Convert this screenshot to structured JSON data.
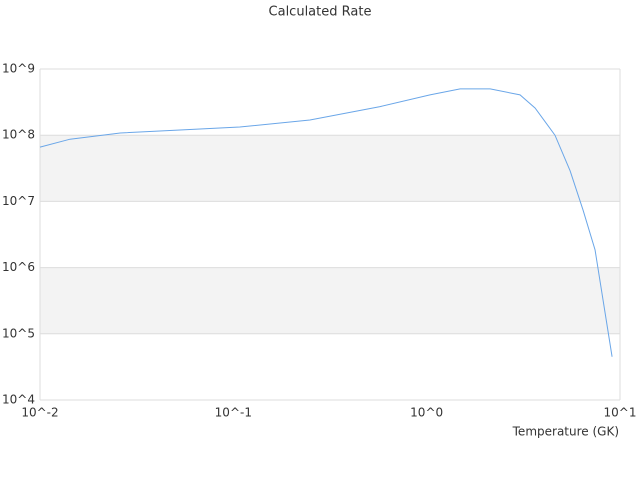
{
  "chart_data": {
    "type": "line",
    "title": "Calculated Rate",
    "x_label": "Temperature (GK)",
    "x": [
      0.01,
      0.0143,
      0.026,
      0.053,
      0.108,
      0.249,
      0.574,
      1.04,
      1.49,
      2.13,
      3.04,
      3.64,
      4.61,
      5.52,
      6.44,
      7.43,
      9.1
    ],
    "series": [
      {
        "name": "Calculated Rate",
        "color": "#6aa6e8",
        "values": [
          66000000,
          87000000,
          108000000,
          120000000,
          133000000,
          170000000,
          270000000,
          407000000,
          500000000,
          500000000,
          407000000,
          257000000,
          100000000,
          29000000,
          7400000,
          1850000,
          45000
        ]
      }
    ],
    "xlim": [
      0.01,
      10
    ],
    "xticks": [
      {
        "value": 0.01,
        "label": "10^-2"
      },
      {
        "value": 0.1,
        "label": "10^-1"
      },
      {
        "value": 1,
        "label": "10^0"
      },
      {
        "value": 10,
        "label": "10^1"
      }
    ],
    "ylim": [
      10000,
      1000000000
    ],
    "yticks": [
      {
        "value": 10000,
        "label": "10^4"
      },
      {
        "value": 100000,
        "label": "10^5"
      },
      {
        "value": 1000000,
        "label": "10^6"
      },
      {
        "value": 10000000,
        "label": "10^7"
      },
      {
        "value": 100000000,
        "label": "10^8"
      },
      {
        "value": 1000000000,
        "label": "10^9"
      }
    ],
    "xscale": "log",
    "yscale": "log",
    "grid": true,
    "alternate_bands": true
  }
}
